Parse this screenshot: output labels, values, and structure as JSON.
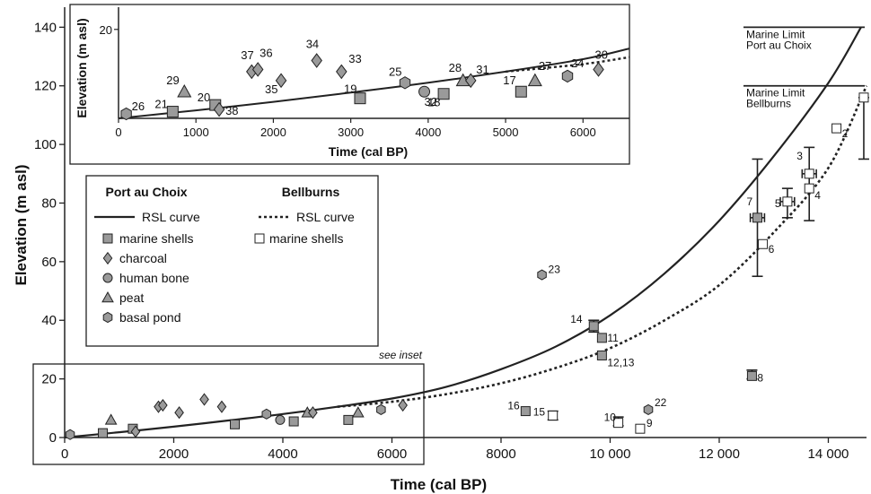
{
  "chart_data": {
    "type": "scatter",
    "xlabel": "Time (cal BP)",
    "ylabel": "Elevation (m asl)",
    "xlim": [
      0,
      14700
    ],
    "ylim": [
      0,
      145
    ],
    "xticks": [
      0,
      2000,
      4000,
      6000,
      8000,
      10000,
      12000,
      14000
    ],
    "xtick_labels": [
      "0",
      "2000",
      "4000",
      "6000",
      "8000",
      "10 000",
      "12 000",
      "14 000"
    ],
    "yticks": [
      0,
      20,
      40,
      60,
      80,
      100,
      120,
      140
    ],
    "see_inset_label": "see inset",
    "legend": {
      "group1_title": "Port au Choix",
      "group2_title": "Bellburns",
      "pac_curve": "RSL curve",
      "bb_curve": "RSL curve",
      "marine_shells": "marine shells",
      "charcoal": "charcoal",
      "human_bone": "human bone",
      "peat": "peat",
      "basal_pond": "basal pond",
      "bb_marine_shells": "marine shells"
    },
    "marine_limits": [
      {
        "line1": "Marine Limit",
        "line2": "Port au Choix",
        "elevation": 140
      },
      {
        "line1": "Marine Limit",
        "line2": "Bellburns",
        "elevation": 120
      }
    ],
    "curves": [
      {
        "group": "Port au Choix",
        "style": "solid",
        "points": [
          [
            0,
            0
          ],
          [
            1000,
            1.8
          ],
          [
            2000,
            3.7
          ],
          [
            3000,
            5.8
          ],
          [
            4000,
            8.0
          ],
          [
            5000,
            10.5
          ],
          [
            6000,
            13.3
          ],
          [
            7000,
            17.3
          ],
          [
            8000,
            23.3
          ],
          [
            9000,
            31.0
          ],
          [
            10000,
            41.7
          ],
          [
            11000,
            56.0
          ],
          [
            12000,
            74.0
          ],
          [
            13000,
            96.0
          ],
          [
            14000,
            121.0
          ],
          [
            14600,
            140.0
          ]
        ]
      },
      {
        "group": "Bellburns",
        "style": "dotted",
        "points": [
          [
            5000,
            10.5
          ],
          [
            6000,
            12.2
          ],
          [
            7000,
            14.8
          ],
          [
            8000,
            18.5
          ],
          [
            9000,
            23.7
          ],
          [
            10000,
            30.5
          ],
          [
            11000,
            40.0
          ],
          [
            12000,
            52.0
          ],
          [
            13000,
            70.0
          ],
          [
            14000,
            92.0
          ],
          [
            14700,
            120.0
          ]
        ]
      }
    ],
    "points": [
      {
        "id": "26",
        "group": "Port au Choix",
        "material": "basal pond",
        "x": 100,
        "y": 1
      },
      {
        "id": "21",
        "group": "Port au Choix",
        "material": "marine shells",
        "x": 700,
        "y": 1.5
      },
      {
        "id": "29",
        "group": "Port au Choix",
        "material": "peat",
        "x": 850,
        "y": 6
      },
      {
        "id": "20",
        "group": "Port au Choix",
        "material": "marine shells",
        "x": 1250,
        "y": 3
      },
      {
        "id": "38",
        "group": "Port au Choix",
        "material": "charcoal",
        "x": 1300,
        "y": 2
      },
      {
        "id": "37",
        "group": "Port au Choix",
        "material": "charcoal",
        "x": 1720,
        "y": 10.5
      },
      {
        "id": "36",
        "group": "Port au Choix",
        "material": "charcoal",
        "x": 1800,
        "y": 11
      },
      {
        "id": "35",
        "group": "Port au Choix",
        "material": "charcoal",
        "x": 2100,
        "y": 8.5
      },
      {
        "id": "34",
        "group": "Port au Choix",
        "material": "charcoal",
        "x": 2560,
        "y": 13
      },
      {
        "id": "33",
        "group": "Port au Choix",
        "material": "charcoal",
        "x": 2880,
        "y": 10.5
      },
      {
        "id": "19",
        "group": "Port au Choix",
        "material": "marine shells",
        "x": 3120,
        "y": 4.5
      },
      {
        "id": "25",
        "group": "Port au Choix",
        "material": "basal pond",
        "x": 3700,
        "y": 8
      },
      {
        "id": "18",
        "group": "Port au Choix",
        "material": "marine shells",
        "x": 4200,
        "y": 5.5
      },
      {
        "id": "32",
        "group": "Port au Choix",
        "material": "human bone",
        "x": 3950,
        "y": 6
      },
      {
        "id": "28",
        "group": "Port au Choix",
        "material": "peat",
        "x": 4450,
        "y": 8.5
      },
      {
        "id": "31",
        "group": "Port au Choix",
        "material": "charcoal",
        "x": 4550,
        "y": 8.5
      },
      {
        "id": "17",
        "group": "Port au Choix",
        "material": "marine shells",
        "x": 5200,
        "y": 6
      },
      {
        "id": "27",
        "group": "Port au Choix",
        "material": "peat",
        "x": 5380,
        "y": 8.5
      },
      {
        "id": "24",
        "group": "Port au Choix",
        "material": "basal pond",
        "x": 5800,
        "y": 9.5
      },
      {
        "id": "30",
        "group": "Port au Choix",
        "material": "charcoal",
        "x": 6200,
        "y": 11
      },
      {
        "id": "14",
        "group": "Port au Choix",
        "material": "marine shells",
        "x": 9700,
        "y": 38
      },
      {
        "id": "11",
        "group": "Port au Choix",
        "material": "marine shells",
        "x": 9850,
        "y": 34
      },
      {
        "id": "12,13",
        "group": "Port au Choix",
        "material": "marine shells",
        "x": 9850,
        "y": 28
      },
      {
        "id": "16",
        "group": "Port au Choix",
        "material": "marine shells",
        "x": 8450,
        "y": 9
      },
      {
        "id": "23",
        "group": "Port au Choix",
        "material": "basal pond",
        "x": 8750,
        "y": 55.5
      },
      {
        "id": "22",
        "group": "Port au Choix",
        "material": "basal pond",
        "x": 10700,
        "y": 9.5
      },
      {
        "id": "7",
        "group": "Port au Choix",
        "material": "marine shells",
        "x": 12700,
        "y": 75
      },
      {
        "id": "8",
        "group": "Port au Choix",
        "material": "marine shells",
        "x": 12600,
        "y": 21
      },
      {
        "id": "15",
        "group": "Bellburns",
        "material": "marine shells",
        "x": 8950,
        "y": 7.5
      },
      {
        "id": "10",
        "group": "Bellburns",
        "material": "marine shells",
        "x": 10150,
        "y": 5
      },
      {
        "id": "9",
        "group": "Bellburns",
        "material": "marine shells",
        "x": 10550,
        "y": 3
      },
      {
        "id": "6",
        "group": "Bellburns",
        "material": "marine shells",
        "x": 12800,
        "y": 66
      },
      {
        "id": "5",
        "group": "Bellburns",
        "material": "marine shells",
        "x": 13250,
        "y": 80.5
      },
      {
        "id": "3",
        "group": "Bellburns",
        "material": "marine shells",
        "x": 13650,
        "y": 90
      },
      {
        "id": "4",
        "group": "Bellburns",
        "material": "marine shells",
        "x": 13650,
        "y": 85
      },
      {
        "id": "2",
        "group": "Bellburns",
        "material": "marine shells",
        "x": 14150,
        "y": 105.5
      },
      {
        "id": "1",
        "group": "Bellburns",
        "material": "marine shells",
        "x": 14650,
        "y": 116
      }
    ],
    "inset": {
      "xlabel": "Time (cal BP)",
      "ylabel": "Elevation (m asl)",
      "xlim": [
        0,
        6600
      ],
      "ylim": [
        0,
        25
      ],
      "xticks": [
        0,
        1000,
        2000,
        3000,
        4000,
        5000,
        6000
      ],
      "yticks": [
        20
      ]
    }
  }
}
